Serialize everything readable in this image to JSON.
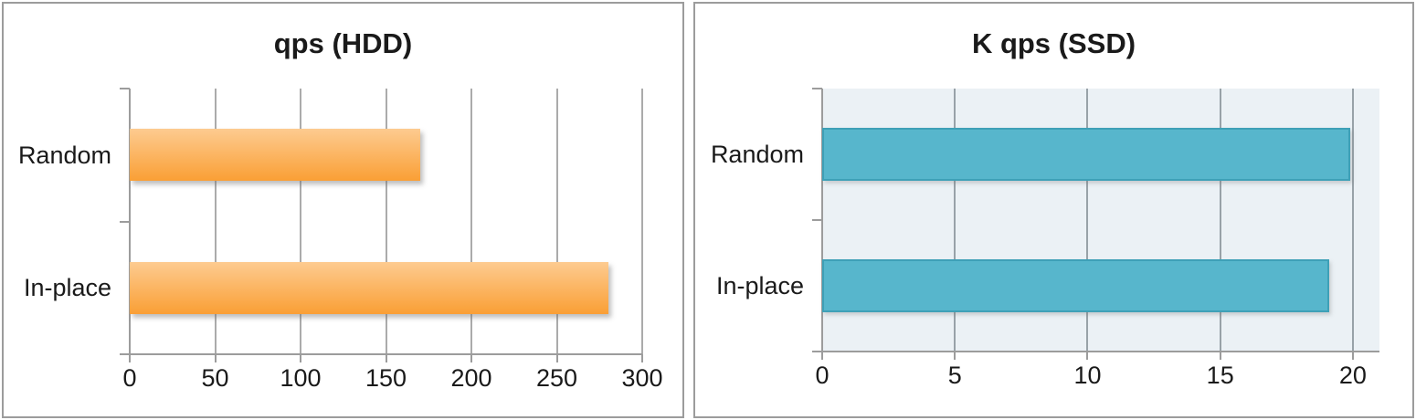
{
  "figure": {
    "description": "Two side-by-side horizontal bar charts comparing Random vs In-place query throughput on HDD and SSD"
  },
  "chart_data": [
    {
      "type": "bar",
      "orientation": "horizontal",
      "title": "qps (HDD)",
      "categories": [
        "Random",
        "In-place"
      ],
      "values": [
        170,
        280
      ],
      "xticks": [
        0,
        50,
        100,
        150,
        200,
        250,
        300
      ],
      "xlim": [
        0,
        300
      ],
      "grid": true,
      "legend": false,
      "colors": {
        "bar_gradient_top": "#FDCB90",
        "bar_gradient_bottom": "#FA9F35",
        "plot_bg": "#FFFFFF",
        "gridline": "#ABABAB",
        "axis": "#9C9C9C",
        "text": "#1A1A1A"
      }
    },
    {
      "type": "bar",
      "orientation": "horizontal",
      "title": "K qps (SSD)",
      "categories": [
        "Random",
        "In-place"
      ],
      "values": [
        19.9,
        19.1
      ],
      "xticks": [
        0,
        5,
        10,
        15,
        20
      ],
      "xlim": [
        0,
        21
      ],
      "grid": true,
      "legend": false,
      "colors": {
        "bar_fill": "#57B6CC",
        "bar_border": "#3EA0B7",
        "plot_bg": "#EBF1F5",
        "gridline": "#98A2A8",
        "axis": "#9C9C9C",
        "text": "#1A1A1A"
      }
    }
  ]
}
